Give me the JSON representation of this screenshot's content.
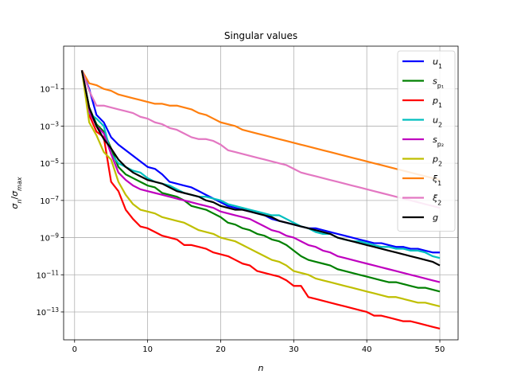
{
  "chart_data": {
    "type": "line",
    "title": "Singular values",
    "xlabel": "n",
    "ylabel_base": "σ",
    "ylabel_num_sub": "n",
    "ylabel_den_sub": "max",
    "xlim": [
      -1.5,
      52.5
    ],
    "ylim_exp": [
      -14.5,
      1.3
    ],
    "yscale": "log",
    "grid": true,
    "legend_position": "top-right",
    "x_ticks": [
      {
        "value": 0,
        "label": "0"
      },
      {
        "value": 10,
        "label": "10"
      },
      {
        "value": 20,
        "label": "20"
      },
      {
        "value": 30,
        "label": "30"
      },
      {
        "value": 40,
        "label": "40"
      },
      {
        "value": 50,
        "label": "50"
      }
    ],
    "y_ticks": [
      {
        "exp": -1,
        "base": "10",
        "sup": "−1"
      },
      {
        "exp": -3,
        "base": "10",
        "sup": "−3"
      },
      {
        "exp": -5,
        "base": "10",
        "sup": "−5"
      },
      {
        "exp": -7,
        "base": "10",
        "sup": "−7"
      },
      {
        "exp": -9,
        "base": "10",
        "sup": "−9"
      },
      {
        "exp": -11,
        "base": "10",
        "sup": "−11"
      },
      {
        "exp": -13,
        "base": "10",
        "sup": "−13"
      }
    ],
    "series": [
      {
        "name": "u",
        "sub": "1",
        "color": "#0000ff",
        "y_exp": [
          0.0,
          -1.0,
          -2.4,
          -2.8,
          -3.6,
          -4.0,
          -4.3,
          -4.6,
          -4.9,
          -5.2,
          -5.3,
          -5.6,
          -6.0,
          -6.1,
          -6.2,
          -6.3,
          -6.5,
          -6.7,
          -6.9,
          -7.1,
          -7.3,
          -7.4,
          -7.5,
          -7.6,
          -7.7,
          -7.8,
          -8.0,
          -8.1,
          -8.2,
          -8.3,
          -8.4,
          -8.5,
          -8.5,
          -8.6,
          -8.7,
          -8.8,
          -8.9,
          -9.0,
          -9.1,
          -9.2,
          -9.3,
          -9.3,
          -9.4,
          -9.5,
          -9.5,
          -9.6,
          -9.6,
          -9.7,
          -9.8,
          -9.8
        ]
      },
      {
        "name": "s",
        "sub": "p₁",
        "color": "#008000",
        "y_exp": [
          0.0,
          -2.0,
          -2.9,
          -3.3,
          -4.2,
          -5.2,
          -5.6,
          -5.8,
          -6.0,
          -6.2,
          -6.3,
          -6.6,
          -6.7,
          -6.8,
          -7.0,
          -7.3,
          -7.4,
          -7.5,
          -7.7,
          -7.9,
          -8.2,
          -8.3,
          -8.5,
          -8.6,
          -8.8,
          -8.9,
          -9.1,
          -9.2,
          -9.4,
          -9.7,
          -10.0,
          -10.2,
          -10.3,
          -10.4,
          -10.5,
          -10.7,
          -10.8,
          -10.9,
          -11.0,
          -11.1,
          -11.2,
          -11.3,
          -11.4,
          -11.4,
          -11.5,
          -11.6,
          -11.7,
          -11.7,
          -11.8,
          -11.9
        ]
      },
      {
        "name": "p",
        "sub": "1",
        "color": "#ff0000",
        "y_exp": [
          0.0,
          -2.4,
          -3.3,
          -3.6,
          -6.0,
          -6.5,
          -7.5,
          -8.0,
          -8.4,
          -8.5,
          -8.7,
          -8.9,
          -9.0,
          -9.1,
          -9.4,
          -9.4,
          -9.5,
          -9.6,
          -9.8,
          -9.9,
          -10.0,
          -10.2,
          -10.4,
          -10.5,
          -10.8,
          -10.9,
          -11.0,
          -11.1,
          -11.3,
          -11.6,
          -11.6,
          -12.2,
          -12.3,
          -12.4,
          -12.5,
          -12.6,
          -12.7,
          -12.8,
          -12.9,
          -13.0,
          -13.2,
          -13.2,
          -13.3,
          -13.4,
          -13.5,
          -13.5,
          -13.6,
          -13.7,
          -13.8,
          -13.9
        ]
      },
      {
        "name": "u",
        "sub": "2",
        "color": "#00bfbf",
        "y_exp": [
          0.0,
          -2.3,
          -2.6,
          -3.0,
          -4.5,
          -5.0,
          -5.2,
          -5.4,
          -5.5,
          -5.8,
          -6.0,
          -6.1,
          -6.2,
          -6.4,
          -6.6,
          -6.7,
          -6.8,
          -6.8,
          -6.9,
          -7.0,
          -7.2,
          -7.3,
          -7.4,
          -7.5,
          -7.6,
          -7.7,
          -7.8,
          -7.8,
          -8.0,
          -8.2,
          -8.4,
          -8.5,
          -8.7,
          -8.8,
          -8.8,
          -9.0,
          -9.1,
          -9.2,
          -9.2,
          -9.3,
          -9.4,
          -9.5,
          -9.5,
          -9.6,
          -9.6,
          -9.7,
          -9.7,
          -9.8,
          -10.0,
          -10.1
        ]
      },
      {
        "name": "s",
        "sub": "p₂",
        "color": "#bf00bf",
        "y_exp": [
          0.0,
          -2.2,
          -3.0,
          -3.4,
          -4.5,
          -5.5,
          -5.9,
          -6.2,
          -6.4,
          -6.5,
          -6.6,
          -6.7,
          -6.8,
          -6.9,
          -7.0,
          -7.1,
          -7.2,
          -7.3,
          -7.4,
          -7.6,
          -7.7,
          -7.8,
          -7.9,
          -8.0,
          -8.2,
          -8.4,
          -8.6,
          -8.7,
          -8.9,
          -9.0,
          -9.2,
          -9.4,
          -9.5,
          -9.7,
          -9.8,
          -10.0,
          -10.1,
          -10.2,
          -10.3,
          -10.4,
          -10.5,
          -10.6,
          -10.7,
          -10.8,
          -10.9,
          -11.0,
          -11.1,
          -11.2,
          -11.3,
          -11.4
        ]
      },
      {
        "name": "p",
        "sub": "2",
        "color": "#bfbf00",
        "y_exp": [
          0.0,
          -2.8,
          -3.5,
          -4.4,
          -4.8,
          -6.0,
          -6.7,
          -7.2,
          -7.5,
          -7.6,
          -7.7,
          -7.9,
          -8.0,
          -8.1,
          -8.2,
          -8.4,
          -8.6,
          -8.7,
          -8.8,
          -9.0,
          -9.1,
          -9.2,
          -9.4,
          -9.6,
          -9.8,
          -10.0,
          -10.2,
          -10.3,
          -10.5,
          -10.8,
          -10.9,
          -11.0,
          -11.2,
          -11.3,
          -11.4,
          -11.5,
          -11.6,
          -11.7,
          -11.8,
          -11.9,
          -12.0,
          -12.1,
          -12.2,
          -12.2,
          -12.3,
          -12.4,
          -12.5,
          -12.5,
          -12.6,
          -12.7
        ]
      },
      {
        "name": "ξ",
        "sub": "1",
        "color": "#ff7f0e",
        "y_exp": [
          0.0,
          -0.7,
          -0.8,
          -1.0,
          -1.1,
          -1.3,
          -1.4,
          -1.5,
          -1.6,
          -1.7,
          -1.8,
          -1.8,
          -1.9,
          -1.9,
          -2.0,
          -2.1,
          -2.3,
          -2.4,
          -2.6,
          -2.8,
          -2.9,
          -3.0,
          -3.2,
          -3.3,
          -3.4,
          -3.5,
          -3.6,
          -3.7,
          -3.8,
          -3.9,
          -4.0,
          -4.1,
          -4.2,
          -4.3,
          -4.4,
          -4.5,
          -4.6,
          -4.7,
          -4.8,
          -4.9,
          -5.0,
          -5.1,
          -5.2,
          -5.3,
          -5.4,
          -5.5,
          -5.6,
          -5.7,
          -5.8,
          -5.9
        ]
      },
      {
        "name": "ξ",
        "sub": "2",
        "color": "#e377c2",
        "y_exp": [
          0.0,
          -1.1,
          -1.9,
          -1.9,
          -2.0,
          -2.1,
          -2.2,
          -2.3,
          -2.5,
          -2.6,
          -2.8,
          -2.9,
          -3.1,
          -3.2,
          -3.4,
          -3.6,
          -3.7,
          -3.7,
          -3.8,
          -4.0,
          -4.3,
          -4.4,
          -4.5,
          -4.6,
          -4.7,
          -4.8,
          -4.9,
          -5.0,
          -5.1,
          -5.3,
          -5.5,
          -5.6,
          -5.7,
          -5.8,
          -5.9,
          -6.0,
          -6.1,
          -6.2,
          -6.3,
          -6.4,
          -6.5,
          -6.6,
          -6.7,
          -6.8,
          -6.9,
          -7.0,
          -7.1,
          -7.2,
          -7.3,
          -7.4
        ]
      },
      {
        "name": "g",
        "sub": "",
        "color": "#000000",
        "y_exp": [
          0.0,
          -2.0,
          -3.0,
          -3.7,
          -4.2,
          -4.8,
          -5.2,
          -5.5,
          -5.7,
          -5.9,
          -6.0,
          -6.1,
          -6.3,
          -6.5,
          -6.6,
          -6.7,
          -6.8,
          -7.0,
          -7.1,
          -7.3,
          -7.4,
          -7.5,
          -7.5,
          -7.6,
          -7.7,
          -7.8,
          -7.9,
          -8.1,
          -8.2,
          -8.3,
          -8.4,
          -8.5,
          -8.6,
          -8.7,
          -8.8,
          -9.0,
          -9.1,
          -9.2,
          -9.3,
          -9.4,
          -9.5,
          -9.6,
          -9.7,
          -9.8,
          -9.9,
          -10.0,
          -10.1,
          -10.2,
          -10.3,
          -10.5
        ]
      }
    ]
  }
}
